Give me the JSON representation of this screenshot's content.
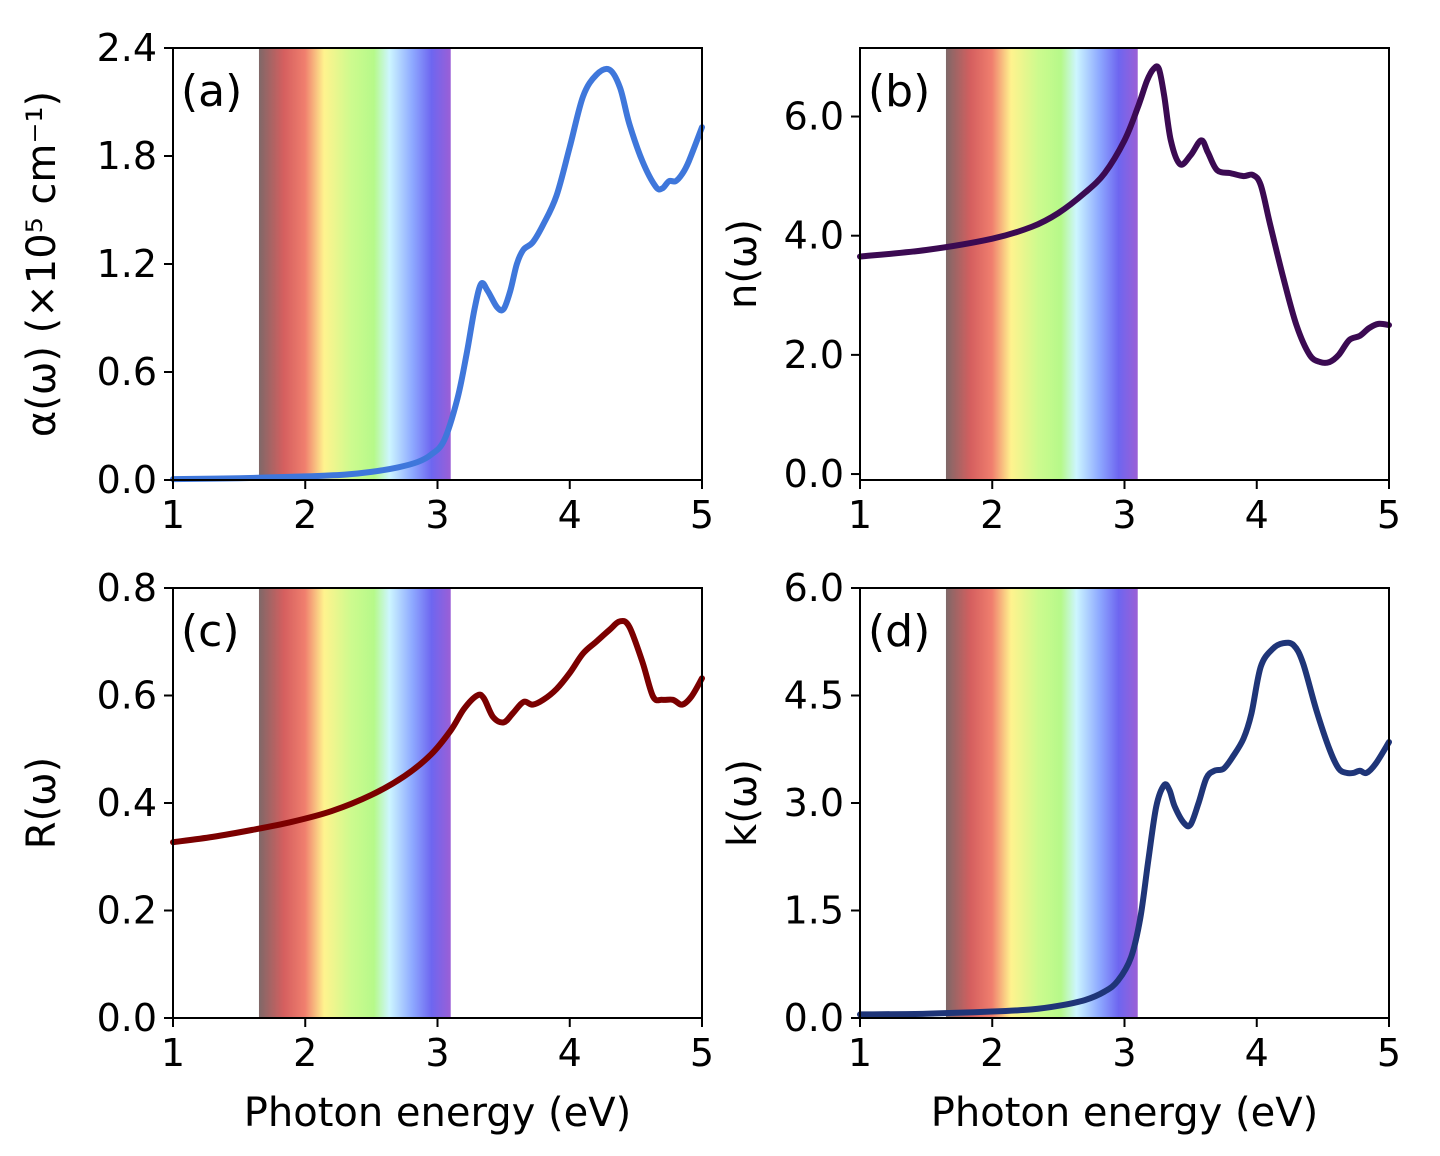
{
  "chart_data": [
    {
      "type": "line",
      "panel_label": "(a)",
      "ylabel": "α(ω) (×10⁵ cm⁻¹)",
      "xlabel": "",
      "xlim": [
        1,
        5
      ],
      "ylim": [
        0,
        2.4
      ],
      "xticks": [
        "1",
        "2",
        "3",
        "4",
        "5"
      ],
      "yticks": [
        "0.0",
        "0.6",
        "1.2",
        "1.8",
        "2.4"
      ],
      "visible_band_eV": [
        1.65,
        3.1
      ],
      "series": [
        {
          "name": "alpha",
          "color": "#3f77db",
          "x": [
            1.0,
            1.5,
            2.0,
            2.3,
            2.5,
            2.7,
            2.85,
            2.95,
            3.05,
            3.15,
            3.22,
            3.28,
            3.33,
            3.38,
            3.45,
            3.5,
            3.55,
            3.6,
            3.65,
            3.72,
            3.8,
            3.9,
            4.0,
            4.1,
            4.2,
            4.3,
            4.38,
            4.45,
            4.55,
            4.65,
            4.7,
            4.75,
            4.8,
            4.85,
            4.9,
            5.0
          ],
          "y": [
            0.005,
            0.01,
            0.02,
            0.03,
            0.045,
            0.07,
            0.1,
            0.14,
            0.22,
            0.45,
            0.7,
            0.95,
            1.09,
            1.05,
            0.96,
            0.95,
            1.05,
            1.2,
            1.28,
            1.32,
            1.42,
            1.58,
            1.85,
            2.13,
            2.25,
            2.28,
            2.18,
            1.98,
            1.77,
            1.63,
            1.62,
            1.66,
            1.66,
            1.7,
            1.77,
            1.96
          ]
        }
      ]
    },
    {
      "type": "line",
      "panel_label": "(b)",
      "ylabel": "n(ω)",
      "xlabel": "",
      "xlim": [
        1,
        5
      ],
      "ylim": [
        -0.1,
        7.15
      ],
      "xticks": [
        "1",
        "2",
        "3",
        "4",
        "5"
      ],
      "yticks": [
        "0.0",
        "2.0",
        "4.0",
        "6.0"
      ],
      "visible_band_eV": [
        1.65,
        3.1
      ],
      "series": [
        {
          "name": "n",
          "color": "#3b0a52",
          "x": [
            1.0,
            1.5,
            2.0,
            2.3,
            2.5,
            2.7,
            2.85,
            3.0,
            3.1,
            3.17,
            3.22,
            3.26,
            3.3,
            3.35,
            3.42,
            3.5,
            3.58,
            3.63,
            3.7,
            3.8,
            3.9,
            3.97,
            4.03,
            4.1,
            4.2,
            4.3,
            4.4,
            4.48,
            4.55,
            4.62,
            4.7,
            4.78,
            4.85,
            4.92,
            5.0
          ],
          "y": [
            3.65,
            3.76,
            3.95,
            4.15,
            4.38,
            4.72,
            5.05,
            5.6,
            6.15,
            6.6,
            6.8,
            6.8,
            6.35,
            5.6,
            5.2,
            5.35,
            5.6,
            5.4,
            5.1,
            5.05,
            5.0,
            5.02,
            4.85,
            4.2,
            3.3,
            2.5,
            2.0,
            1.88,
            1.88,
            2.0,
            2.25,
            2.32,
            2.45,
            2.52,
            2.5
          ]
        }
      ]
    },
    {
      "type": "line",
      "panel_label": "(c)",
      "ylabel": "R(ω)",
      "xlabel": "Photon energy (eV)",
      "xlim": [
        1,
        5
      ],
      "ylim": [
        0,
        0.8
      ],
      "xticks": [
        "1",
        "2",
        "3",
        "4",
        "5"
      ],
      "yticks": [
        "0.0",
        "0.2",
        "0.4",
        "0.6",
        "0.8"
      ],
      "visible_band_eV": [
        1.65,
        3.1
      ],
      "series": [
        {
          "name": "R",
          "color": "#7b0000",
          "x": [
            1.0,
            1.3,
            1.6,
            1.9,
            2.2,
            2.5,
            2.75,
            2.95,
            3.1,
            3.2,
            3.3,
            3.35,
            3.42,
            3.5,
            3.57,
            3.65,
            3.72,
            3.8,
            3.9,
            4.0,
            4.1,
            4.2,
            4.3,
            4.38,
            4.45,
            4.55,
            4.63,
            4.7,
            4.78,
            4.85,
            4.92,
            5.0
          ],
          "y": [
            0.327,
            0.337,
            0.35,
            0.365,
            0.385,
            0.415,
            0.45,
            0.49,
            0.535,
            0.575,
            0.6,
            0.595,
            0.56,
            0.55,
            0.567,
            0.588,
            0.583,
            0.592,
            0.612,
            0.642,
            0.678,
            0.7,
            0.722,
            0.738,
            0.728,
            0.662,
            0.598,
            0.592,
            0.592,
            0.583,
            0.598,
            0.632
          ]
        }
      ]
    },
    {
      "type": "line",
      "panel_label": "(d)",
      "ylabel": "k(ω)",
      "xlabel": "Photon energy (eV)",
      "xlim": [
        1,
        5
      ],
      "ylim": [
        0,
        6.0
      ],
      "xticks": [
        "1",
        "2",
        "3",
        "4",
        "5"
      ],
      "yticks": [
        "0.0",
        "1.5",
        "3.0",
        "4.5",
        "6.0"
      ],
      "visible_band_eV": [
        1.65,
        3.1
      ],
      "series": [
        {
          "name": "k",
          "color": "#1f3578",
          "x": [
            1.0,
            1.5,
            2.0,
            2.3,
            2.5,
            2.7,
            2.85,
            2.95,
            3.05,
            3.12,
            3.18,
            3.24,
            3.3,
            3.34,
            3.38,
            3.45,
            3.5,
            3.56,
            3.62,
            3.68,
            3.75,
            3.82,
            3.9,
            3.96,
            4.03,
            4.12,
            4.2,
            4.28,
            4.35,
            4.45,
            4.55,
            4.62,
            4.68,
            4.73,
            4.78,
            4.83,
            4.9,
            5.0
          ],
          "y": [
            0.05,
            0.06,
            0.09,
            0.12,
            0.17,
            0.25,
            0.37,
            0.52,
            0.85,
            1.4,
            2.2,
            2.95,
            3.25,
            3.18,
            2.95,
            2.72,
            2.7,
            3.0,
            3.35,
            3.45,
            3.48,
            3.65,
            3.9,
            4.25,
            4.9,
            5.15,
            5.23,
            5.2,
            4.95,
            4.3,
            3.75,
            3.48,
            3.42,
            3.42,
            3.45,
            3.42,
            3.55,
            3.85
          ]
        }
      ]
    }
  ]
}
